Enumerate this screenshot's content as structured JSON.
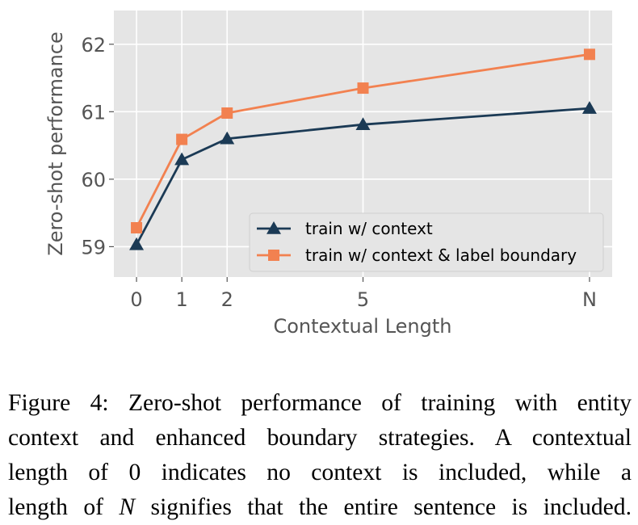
{
  "colors": {
    "panel_bg": "#e5e5e5",
    "grid": "#ffffff",
    "series_1": "#1b3a55",
    "series_2": "#f28150",
    "axis_text": "#555555"
  },
  "chart_data": {
    "type": "line",
    "title": "",
    "xlabel": "Contextual Length",
    "ylabel": "Zero-shot performance",
    "x_categories": [
      "0",
      "1",
      "2",
      "5",
      "N"
    ],
    "x_positions": [
      0,
      1,
      2,
      5,
      10
    ],
    "ylim": [
      58.55,
      62.5
    ],
    "yticks": [
      59,
      60,
      61,
      62
    ],
    "grid": true,
    "legend_position": "lower-right",
    "series": [
      {
        "name": "train w/ context",
        "marker": "triangle",
        "color": "#1b3a55",
        "values": [
          59.03,
          60.29,
          60.6,
          60.81,
          61.05
        ]
      },
      {
        "name": "train w/ context & label boundary",
        "marker": "square",
        "color": "#f28150",
        "values": [
          59.28,
          60.59,
          60.98,
          61.35,
          61.85
        ]
      }
    ]
  },
  "caption": {
    "lines": [
      "Figure 4: Zero-shot performance of training with entity",
      "context and enhanced boundary strategies. A contextual",
      "length of 0 indicates no context is included, while a"
    ],
    "last_line_prefix": "length of ",
    "last_line_var": "N",
    "last_line_suffix": " signifies that the entire sentence is included."
  }
}
